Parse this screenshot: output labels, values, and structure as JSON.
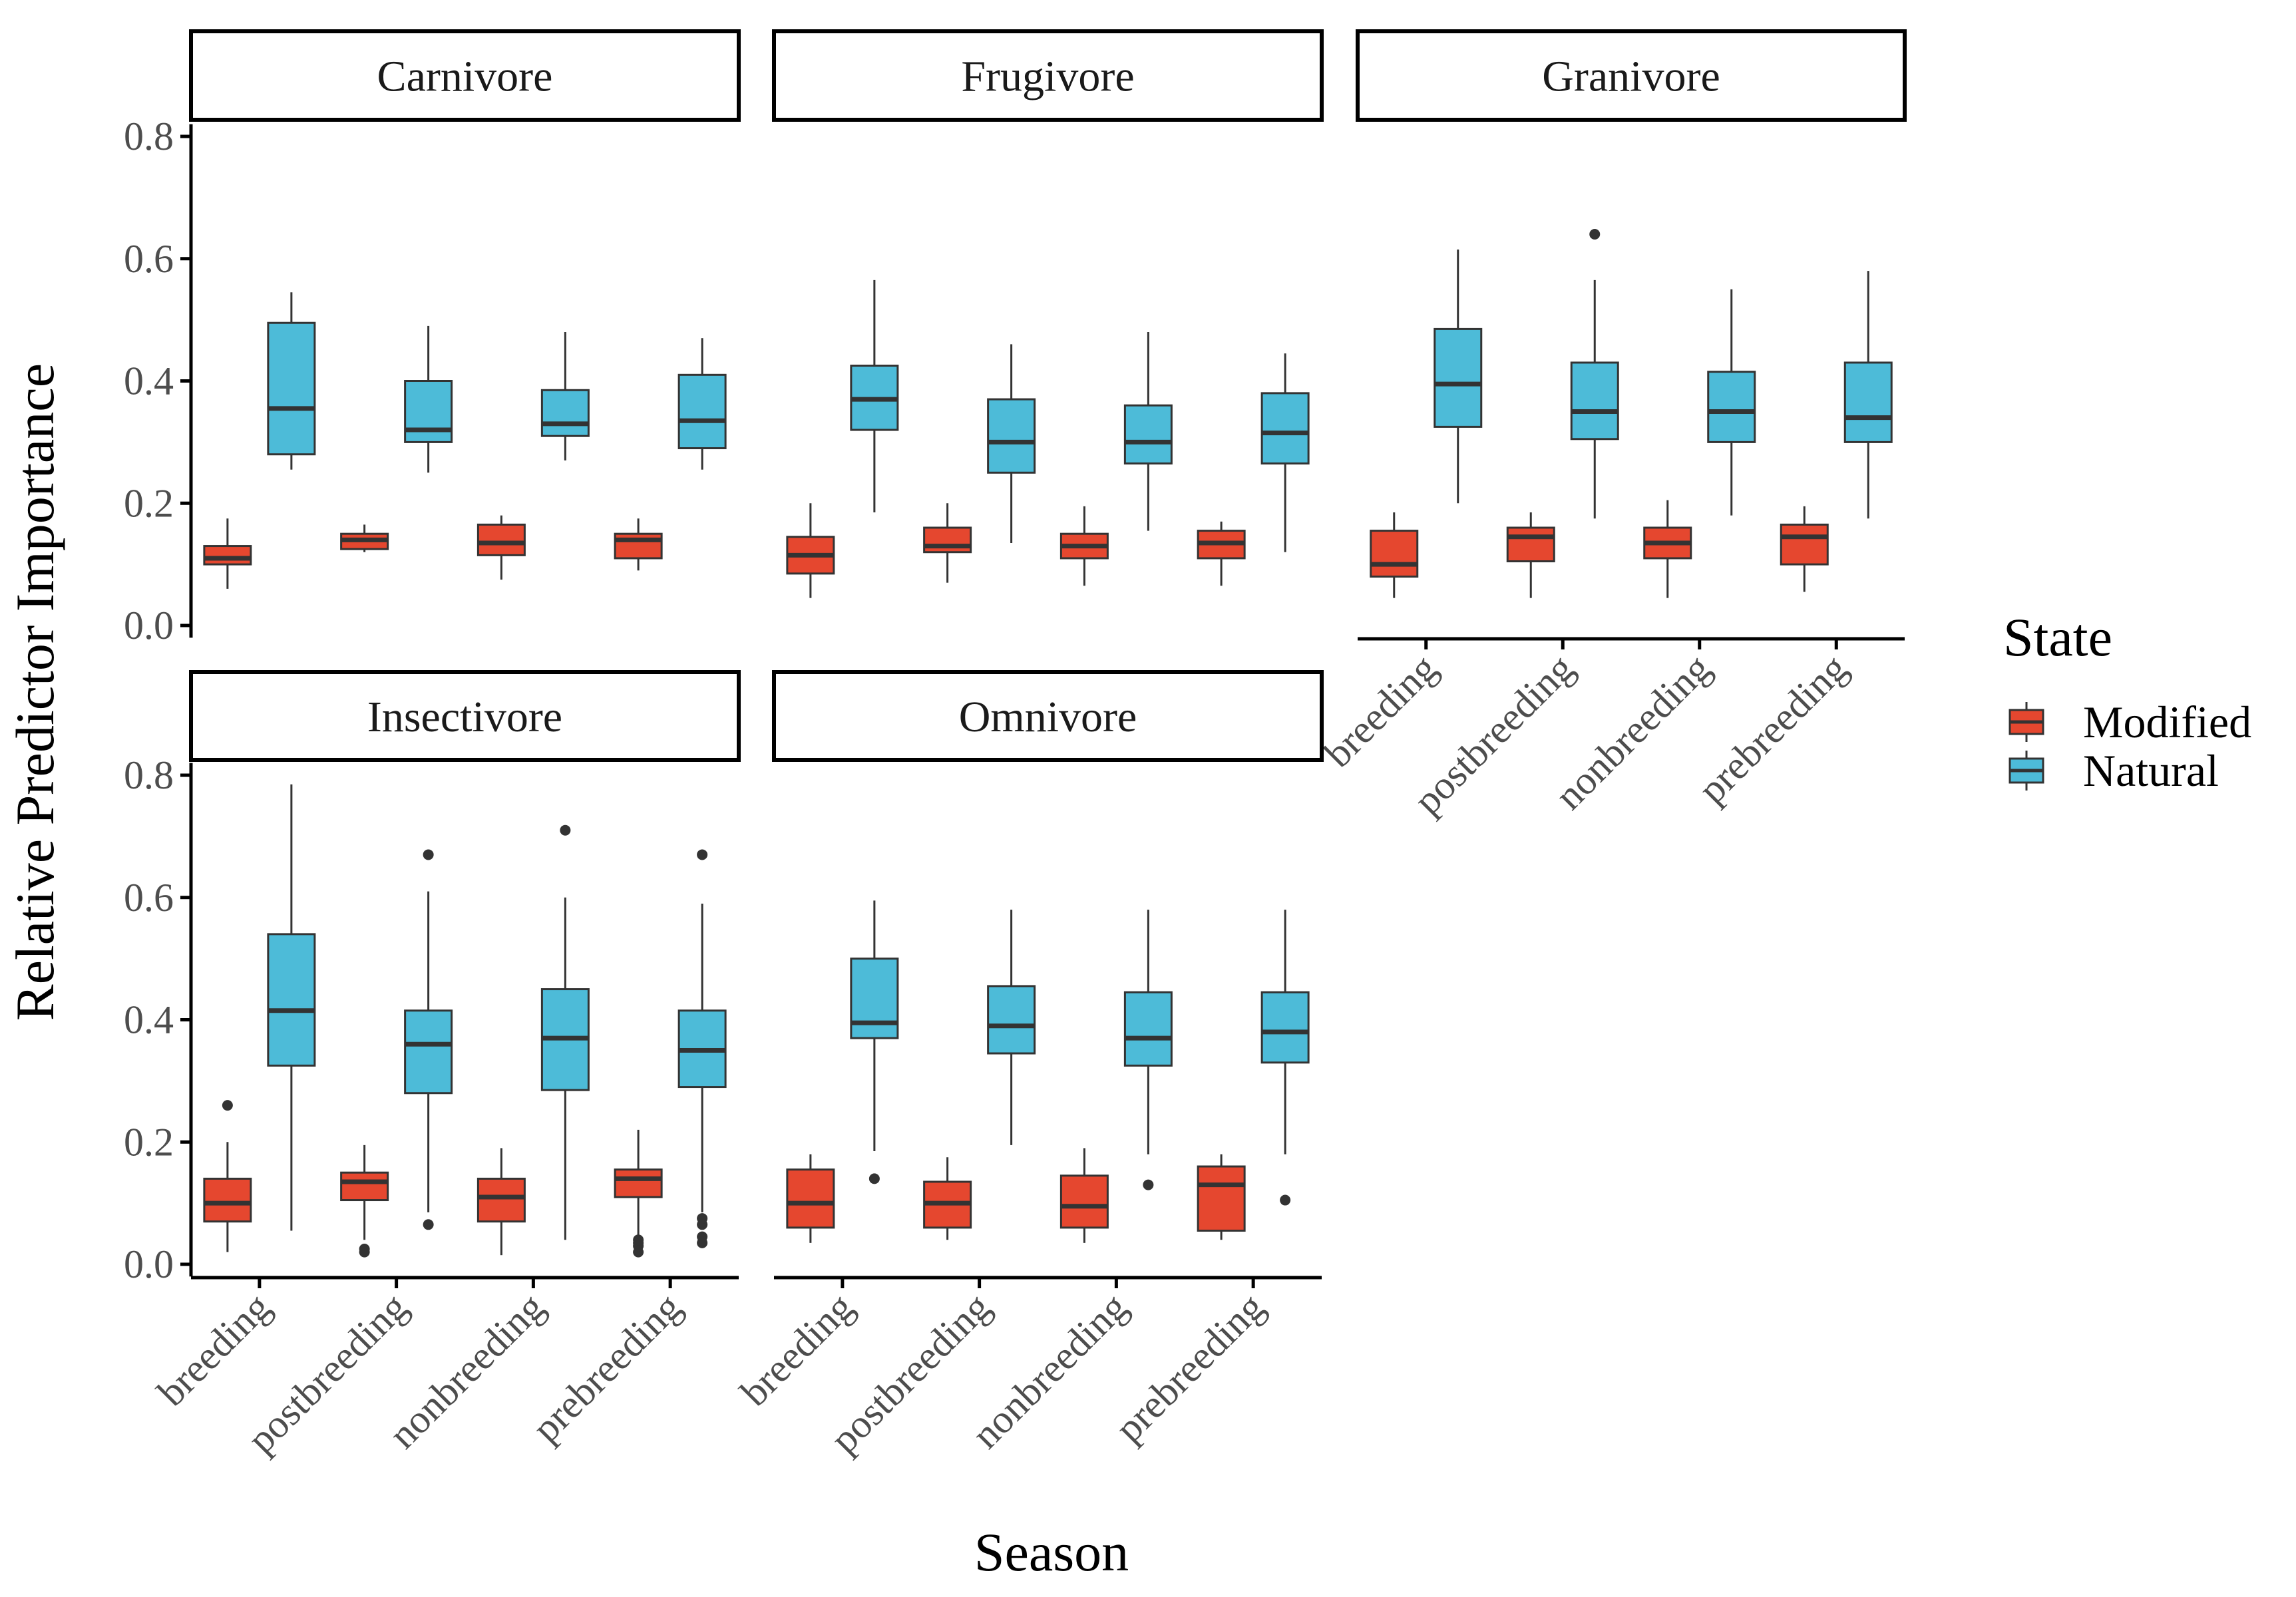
{
  "colors": {
    "Modified": "#E5472F",
    "Natural": "#4DBBD8",
    "median": "#333333",
    "whisker": "#333333",
    "frame": "#000000",
    "tick_label": "#4D4D4D"
  },
  "chart_data": {
    "type": "boxplot",
    "xlabel": "Season",
    "ylabel": "Relative Predictor Importance",
    "ylim": [
      0,
      0.82
    ],
    "yticks": [
      0.0,
      0.2,
      0.4,
      0.6,
      0.8
    ],
    "ytick_labels": [
      "0.0",
      "0.2",
      "0.4",
      "0.6",
      "0.8"
    ],
    "categories": [
      "breeding",
      "postbreeding",
      "nonbreeding",
      "prebreeding"
    ],
    "legend": {
      "title": "State",
      "position": "right",
      "entries": [
        "Modified",
        "Natural"
      ]
    },
    "facets": [
      {
        "name": "Carnivore",
        "boxes": [
          {
            "season": "breeding",
            "state": "Modified",
            "lw": 0.06,
            "q1": 0.1,
            "med": 0.11,
            "q3": 0.13,
            "uw": 0.175,
            "out": []
          },
          {
            "season": "breeding",
            "state": "Natural",
            "lw": 0.255,
            "q1": 0.28,
            "med": 0.355,
            "q3": 0.495,
            "uw": 0.545,
            "out": []
          },
          {
            "season": "postbreeding",
            "state": "Modified",
            "lw": 0.12,
            "q1": 0.125,
            "med": 0.14,
            "q3": 0.15,
            "uw": 0.165,
            "out": []
          },
          {
            "season": "postbreeding",
            "state": "Natural",
            "lw": 0.25,
            "q1": 0.3,
            "med": 0.32,
            "q3": 0.4,
            "uw": 0.49,
            "out": []
          },
          {
            "season": "nonbreeding",
            "state": "Modified",
            "lw": 0.075,
            "q1": 0.115,
            "med": 0.135,
            "q3": 0.165,
            "uw": 0.18,
            "out": []
          },
          {
            "season": "nonbreeding",
            "state": "Natural",
            "lw": 0.27,
            "q1": 0.31,
            "med": 0.33,
            "q3": 0.385,
            "uw": 0.48,
            "out": []
          },
          {
            "season": "prebreeding",
            "state": "Modified",
            "lw": 0.09,
            "q1": 0.11,
            "med": 0.14,
            "q3": 0.15,
            "uw": 0.175,
            "out": []
          },
          {
            "season": "prebreeding",
            "state": "Natural",
            "lw": 0.255,
            "q1": 0.29,
            "med": 0.335,
            "q3": 0.41,
            "uw": 0.47,
            "out": []
          }
        ]
      },
      {
        "name": "Frugivore",
        "boxes": [
          {
            "season": "breeding",
            "state": "Modified",
            "lw": 0.045,
            "q1": 0.085,
            "med": 0.115,
            "q3": 0.145,
            "uw": 0.2,
            "out": []
          },
          {
            "season": "breeding",
            "state": "Natural",
            "lw": 0.185,
            "q1": 0.32,
            "med": 0.37,
            "q3": 0.425,
            "uw": 0.565,
            "out": []
          },
          {
            "season": "postbreeding",
            "state": "Modified",
            "lw": 0.07,
            "q1": 0.12,
            "med": 0.13,
            "q3": 0.16,
            "uw": 0.2,
            "out": []
          },
          {
            "season": "postbreeding",
            "state": "Natural",
            "lw": 0.135,
            "q1": 0.25,
            "med": 0.3,
            "q3": 0.37,
            "uw": 0.46,
            "out": []
          },
          {
            "season": "nonbreeding",
            "state": "Modified",
            "lw": 0.065,
            "q1": 0.11,
            "med": 0.13,
            "q3": 0.15,
            "uw": 0.195,
            "out": []
          },
          {
            "season": "nonbreeding",
            "state": "Natural",
            "lw": 0.155,
            "q1": 0.265,
            "med": 0.3,
            "q3": 0.36,
            "uw": 0.48,
            "out": []
          },
          {
            "season": "prebreeding",
            "state": "Modified",
            "lw": 0.065,
            "q1": 0.11,
            "med": 0.135,
            "q3": 0.155,
            "uw": 0.17,
            "out": []
          },
          {
            "season": "prebreeding",
            "state": "Natural",
            "lw": 0.12,
            "q1": 0.265,
            "med": 0.315,
            "q3": 0.38,
            "uw": 0.445,
            "out": []
          }
        ]
      },
      {
        "name": "Granivore",
        "boxes": [
          {
            "season": "breeding",
            "state": "Modified",
            "lw": 0.045,
            "q1": 0.08,
            "med": 0.1,
            "q3": 0.155,
            "uw": 0.185,
            "out": []
          },
          {
            "season": "breeding",
            "state": "Natural",
            "lw": 0.2,
            "q1": 0.325,
            "med": 0.395,
            "q3": 0.485,
            "uw": 0.615,
            "out": []
          },
          {
            "season": "postbreeding",
            "state": "Modified",
            "lw": 0.045,
            "q1": 0.105,
            "med": 0.145,
            "q3": 0.16,
            "uw": 0.185,
            "out": []
          },
          {
            "season": "postbreeding",
            "state": "Natural",
            "lw": 0.175,
            "q1": 0.305,
            "med": 0.35,
            "q3": 0.43,
            "uw": 0.565,
            "out": [
              0.64
            ]
          },
          {
            "season": "nonbreeding",
            "state": "Modified",
            "lw": 0.045,
            "q1": 0.11,
            "med": 0.135,
            "q3": 0.16,
            "uw": 0.205,
            "out": []
          },
          {
            "season": "nonbreeding",
            "state": "Natural",
            "lw": 0.18,
            "q1": 0.3,
            "med": 0.35,
            "q3": 0.415,
            "uw": 0.55,
            "out": []
          },
          {
            "season": "prebreeding",
            "state": "Modified",
            "lw": 0.055,
            "q1": 0.1,
            "med": 0.145,
            "q3": 0.165,
            "uw": 0.195,
            "out": []
          },
          {
            "season": "prebreeding",
            "state": "Natural",
            "lw": 0.175,
            "q1": 0.3,
            "med": 0.34,
            "q3": 0.43,
            "uw": 0.58,
            "out": []
          }
        ]
      },
      {
        "name": "Insectivore",
        "boxes": [
          {
            "season": "breeding",
            "state": "Modified",
            "lw": 0.02,
            "q1": 0.07,
            "med": 0.1,
            "q3": 0.14,
            "uw": 0.2,
            "out": [
              0.26
            ]
          },
          {
            "season": "breeding",
            "state": "Natural",
            "lw": 0.055,
            "q1": 0.325,
            "med": 0.415,
            "q3": 0.54,
            "uw": 0.785,
            "out": []
          },
          {
            "season": "postbreeding",
            "state": "Modified",
            "lw": 0.04,
            "q1": 0.105,
            "med": 0.135,
            "q3": 0.15,
            "uw": 0.195,
            "out": [
              0.02,
              0.025
            ]
          },
          {
            "season": "postbreeding",
            "state": "Natural",
            "lw": 0.085,
            "q1": 0.28,
            "med": 0.36,
            "q3": 0.415,
            "uw": 0.61,
            "out": [
              0.065,
              0.67
            ]
          },
          {
            "season": "nonbreeding",
            "state": "Modified",
            "lw": 0.015,
            "q1": 0.07,
            "med": 0.11,
            "q3": 0.14,
            "uw": 0.19,
            "out": []
          },
          {
            "season": "nonbreeding",
            "state": "Natural",
            "lw": 0.04,
            "q1": 0.285,
            "med": 0.37,
            "q3": 0.45,
            "uw": 0.6,
            "out": [
              0.71
            ]
          },
          {
            "season": "prebreeding",
            "state": "Modified",
            "lw": 0.045,
            "q1": 0.11,
            "med": 0.14,
            "q3": 0.155,
            "uw": 0.22,
            "out": [
              0.02,
              0.03,
              0.035,
              0.04
            ]
          },
          {
            "season": "prebreeding",
            "state": "Natural",
            "lw": 0.085,
            "q1": 0.29,
            "med": 0.35,
            "q3": 0.415,
            "uw": 0.59,
            "out": [
              0.035,
              0.045,
              0.065,
              0.075,
              0.67
            ]
          }
        ]
      },
      {
        "name": "Omnivore",
        "boxes": [
          {
            "season": "breeding",
            "state": "Modified",
            "lw": 0.035,
            "q1": 0.06,
            "med": 0.1,
            "q3": 0.155,
            "uw": 0.18,
            "out": []
          },
          {
            "season": "breeding",
            "state": "Natural",
            "lw": 0.185,
            "q1": 0.37,
            "med": 0.395,
            "q3": 0.5,
            "uw": 0.595,
            "out": [
              0.14
            ]
          },
          {
            "season": "postbreeding",
            "state": "Modified",
            "lw": 0.04,
            "q1": 0.06,
            "med": 0.1,
            "q3": 0.135,
            "uw": 0.175,
            "out": []
          },
          {
            "season": "postbreeding",
            "state": "Natural",
            "lw": 0.195,
            "q1": 0.345,
            "med": 0.39,
            "q3": 0.455,
            "uw": 0.58,
            "out": []
          },
          {
            "season": "nonbreeding",
            "state": "Modified",
            "lw": 0.035,
            "q1": 0.06,
            "med": 0.095,
            "q3": 0.145,
            "uw": 0.19,
            "out": []
          },
          {
            "season": "nonbreeding",
            "state": "Natural",
            "lw": 0.18,
            "q1": 0.325,
            "med": 0.37,
            "q3": 0.445,
            "uw": 0.58,
            "out": [
              0.13
            ]
          },
          {
            "season": "prebreeding",
            "state": "Modified",
            "lw": 0.04,
            "q1": 0.055,
            "med": 0.13,
            "q3": 0.16,
            "uw": 0.18,
            "out": []
          },
          {
            "season": "prebreeding",
            "state": "Natural",
            "lw": 0.18,
            "q1": 0.33,
            "med": 0.38,
            "q3": 0.445,
            "uw": 0.58,
            "out": [
              0.105
            ]
          }
        ]
      }
    ]
  }
}
